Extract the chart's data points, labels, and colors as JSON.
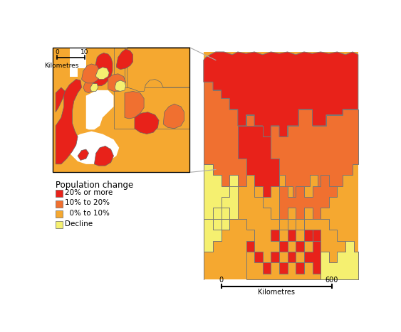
{
  "colors": {
    "red": "#E8221A",
    "orange_dark": "#F07030",
    "orange_light": "#F5A830",
    "yellow": "#F5F070",
    "border": "#555555",
    "background": "#FFFFFF"
  },
  "legend": {
    "title": "Population change",
    "items": [
      {
        "label": "20% or more",
        "color": "#E8221A"
      },
      {
        "label": "10% to 20%",
        "color": "#F07030"
      },
      {
        "label": "  0% to 10%",
        "color": "#F5A830"
      },
      {
        "label": "Decline",
        "color": "#F5F070"
      }
    ]
  }
}
